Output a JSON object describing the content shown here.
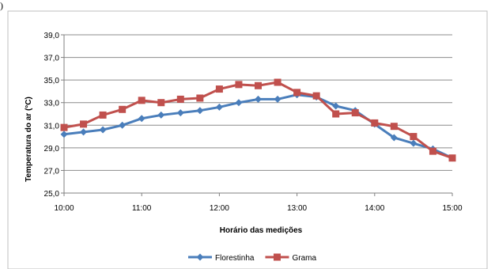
{
  "fragment": ")",
  "chart_data": {
    "type": "line",
    "title": "",
    "xlabel": "Horário das medições",
    "ylabel": "Temperatura do ar (°C)",
    "ylim": [
      25,
      39
    ],
    "yticks": [
      "25,0",
      "27,0",
      "29,0",
      "31,0",
      "33,0",
      "35,0",
      "37,0",
      "39,0"
    ],
    "xlim": [
      "10:00",
      "15:00"
    ],
    "xticks": [
      "10:00",
      "11:00",
      "12:00",
      "13:00",
      "14:00",
      "15:00"
    ],
    "grid": "horizontal",
    "legend_position": "bottom",
    "x": [
      "10:00",
      "10:15",
      "10:30",
      "10:45",
      "11:00",
      "11:15",
      "11:30",
      "11:45",
      "12:00",
      "12:15",
      "12:30",
      "12:45",
      "13:00",
      "13:15",
      "13:30",
      "13:45",
      "14:00",
      "14:15",
      "14:30",
      "14:45",
      "15:00"
    ],
    "series": [
      {
        "name": "Florestinha",
        "color": "#4a7ebb",
        "marker": "diamond",
        "values": [
          30.2,
          30.4,
          30.6,
          31.0,
          31.6,
          31.9,
          32.1,
          32.3,
          32.6,
          33.0,
          33.3,
          33.3,
          33.7,
          33.5,
          32.7,
          32.3,
          31.1,
          29.9,
          29.4,
          28.9,
          28.1
        ]
      },
      {
        "name": "Grama",
        "color": "#c0504d",
        "marker": "square",
        "values": [
          30.8,
          31.1,
          31.9,
          32.4,
          33.2,
          33.0,
          33.3,
          33.4,
          34.2,
          34.6,
          34.5,
          34.8,
          33.9,
          33.6,
          32.0,
          32.1,
          31.2,
          30.9,
          30.0,
          28.7,
          28.1
        ]
      }
    ]
  }
}
